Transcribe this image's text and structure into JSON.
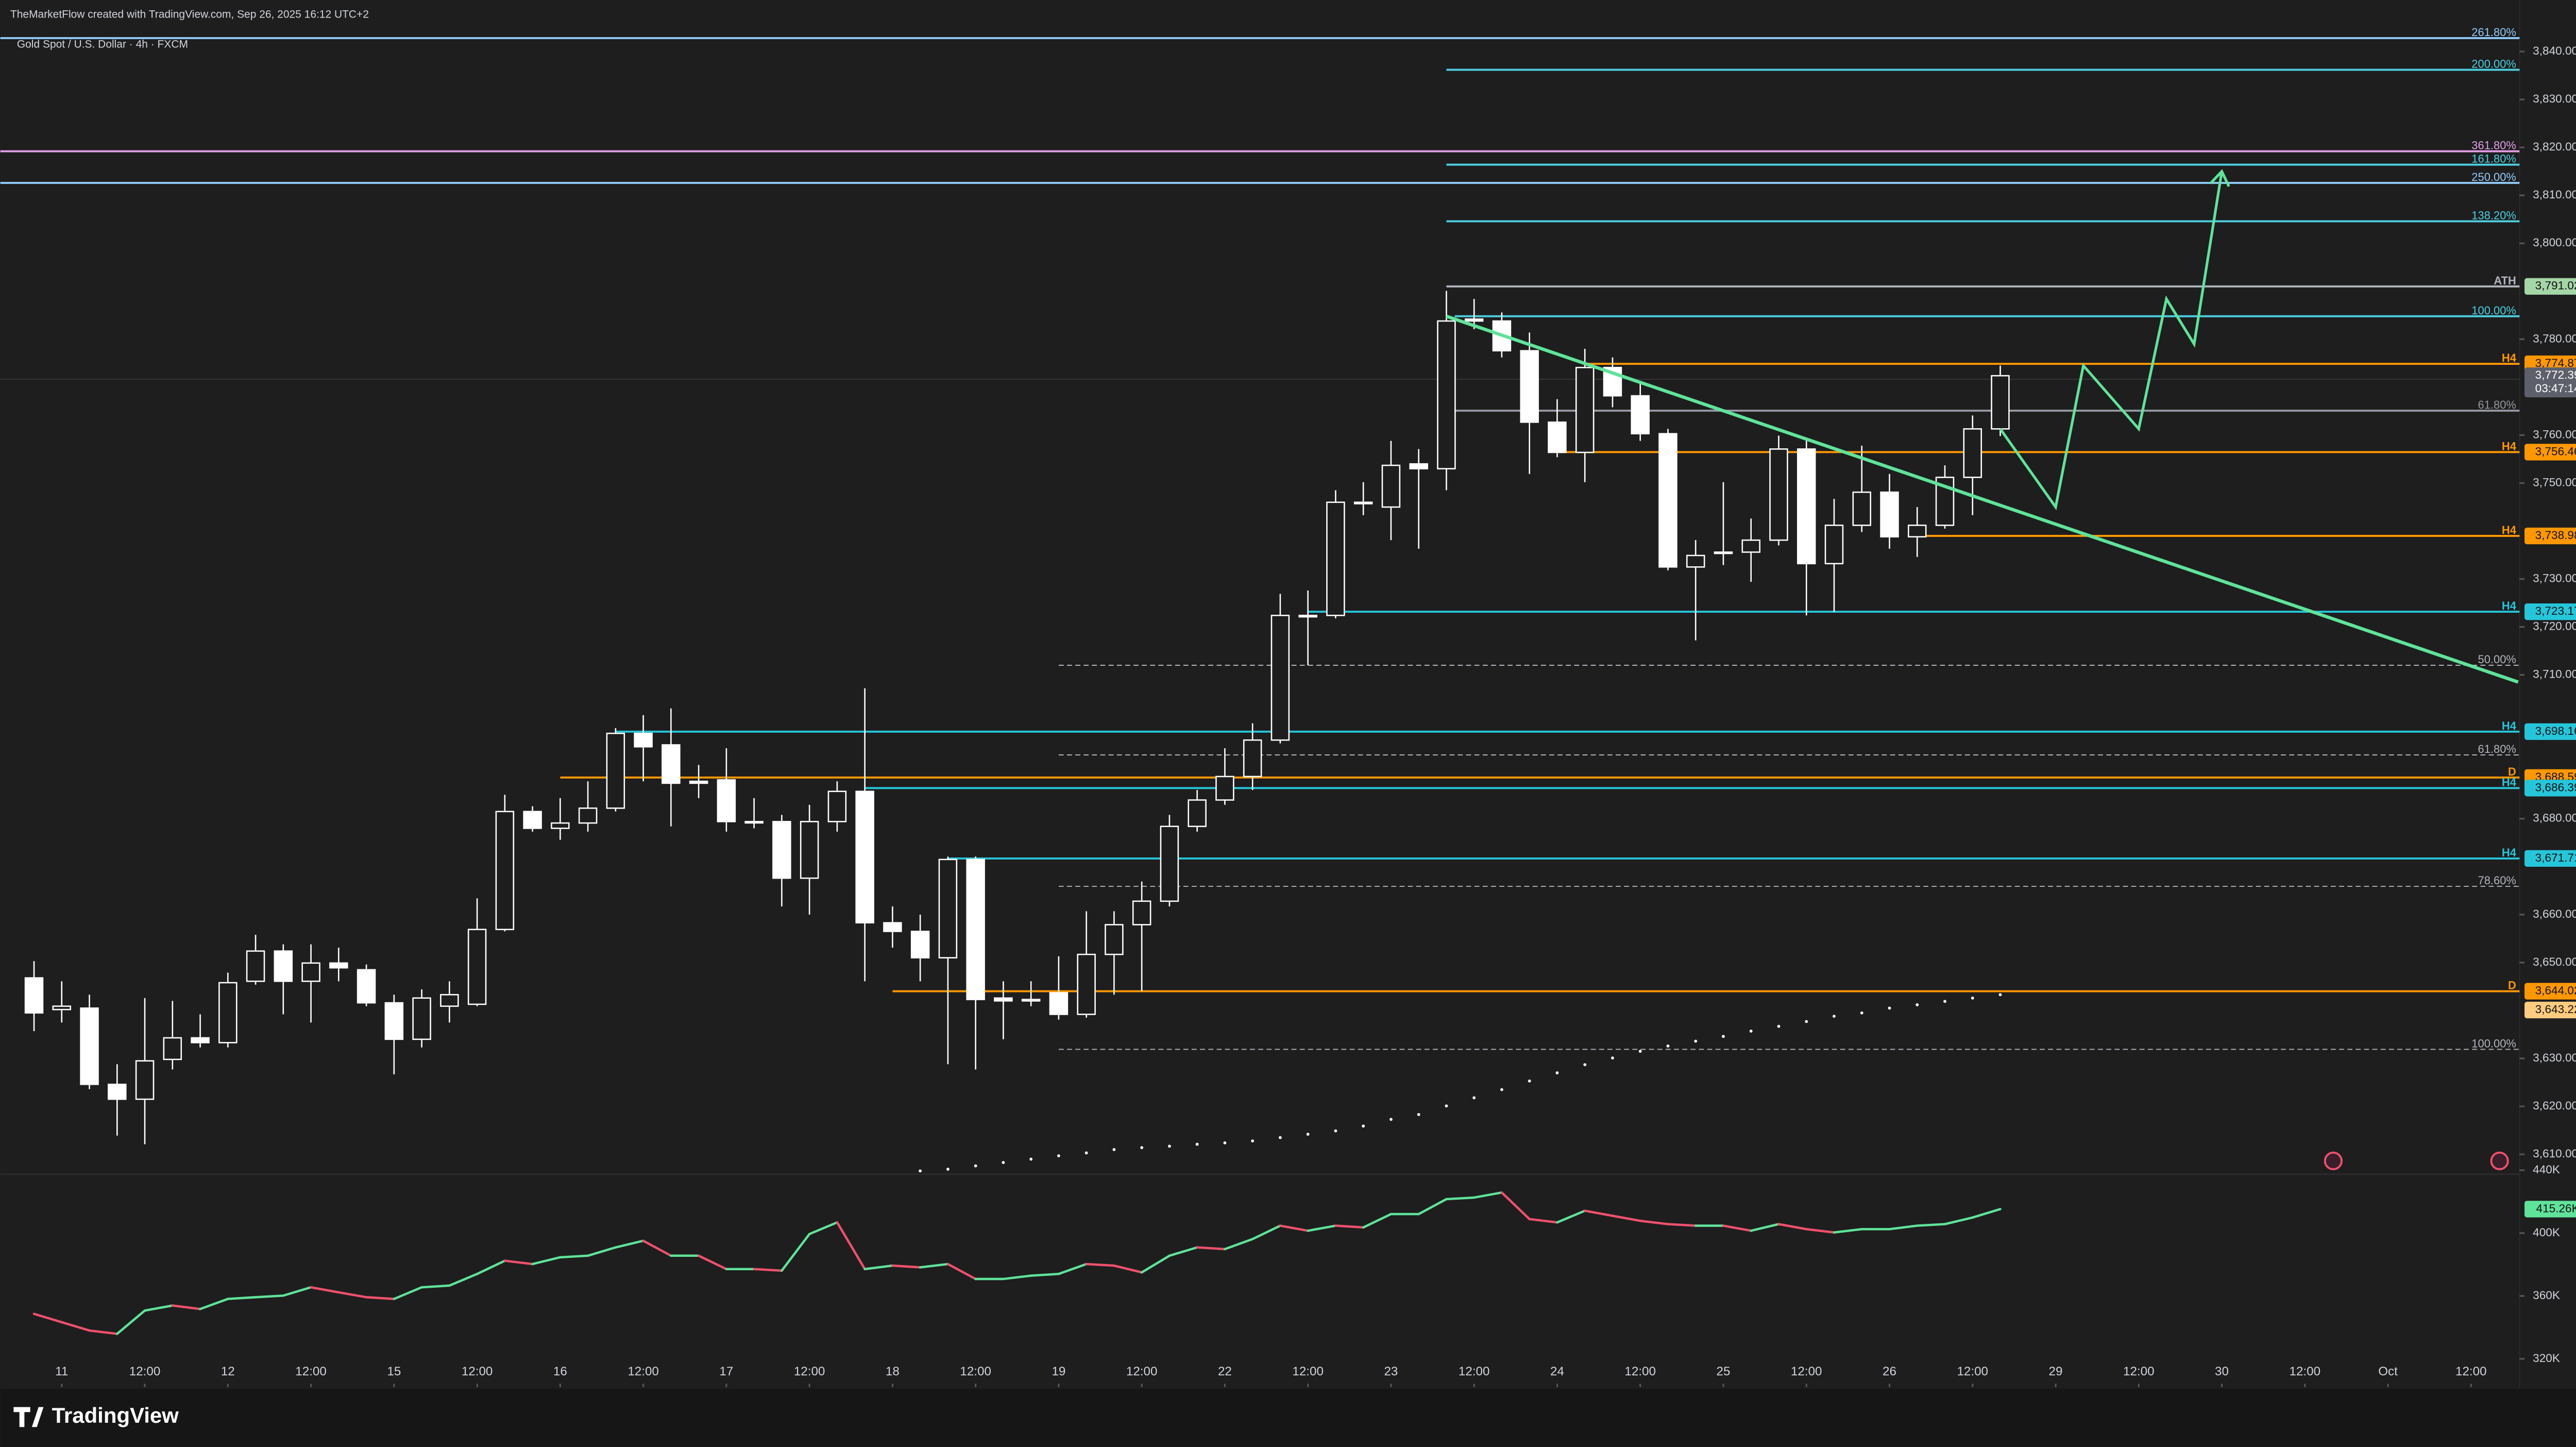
{
  "chart_data": {
    "type": "candlestick",
    "header": "TheMarketFlow created with TradingView.com, Sep 26, 2025 16:12 UTC+2",
    "title": "Gold Spot / U.S. Dollar · 4h · FXCM",
    "brand": "TradingView",
    "grid": false,
    "up_color": "#1e1e1e",
    "down_color": "#ffffff",
    "xlim": [
      -1.218,
      89.75
    ],
    "ylim": [
      3606.2,
      3850.75
    ],
    "xticks": [
      {
        "value": 1,
        "label": "11"
      },
      {
        "value": 4,
        "label": "12:00"
      },
      {
        "value": 7,
        "label": "12"
      },
      {
        "value": 10,
        "label": "12:00"
      },
      {
        "value": 13,
        "label": "15"
      },
      {
        "value": 16,
        "label": "12:00"
      },
      {
        "value": 19,
        "label": "16"
      },
      {
        "value": 22,
        "label": "12:00"
      },
      {
        "value": 25,
        "label": "17"
      },
      {
        "value": 28,
        "label": "12:00"
      },
      {
        "value": 31,
        "label": "18"
      },
      {
        "value": 34,
        "label": "12:00"
      },
      {
        "value": 37,
        "label": "19"
      },
      {
        "value": 40,
        "label": "12:00"
      },
      {
        "value": 43,
        "label": "22"
      },
      {
        "value": 46,
        "label": "12:00"
      },
      {
        "value": 49,
        "label": "23"
      },
      {
        "value": 52,
        "label": "12:00"
      },
      {
        "value": 55,
        "label": "24"
      },
      {
        "value": 58,
        "label": "12:00"
      },
      {
        "value": 61,
        "label": "25"
      },
      {
        "value": 64,
        "label": "12:00"
      },
      {
        "value": 67,
        "label": "26"
      },
      {
        "value": 70,
        "label": "12:00"
      },
      {
        "value": 73,
        "label": "29"
      },
      {
        "value": 76,
        "label": "12:00"
      },
      {
        "value": 79,
        "label": "30"
      },
      {
        "value": 82,
        "label": "12:00"
      },
      {
        "value": 85,
        "label": "Oct"
      },
      {
        "value": 88,
        "label": "12:00"
      }
    ],
    "yticks": [
      {
        "value": 3840,
        "label": "3,840.00"
      },
      {
        "value": 3830,
        "label": "3,830.00"
      },
      {
        "value": 3820,
        "label": "3,820.00"
      },
      {
        "value": 3810,
        "label": "3,810.00"
      },
      {
        "value": 3800,
        "label": "3,800.00"
      },
      {
        "value": 3780,
        "label": "3,780.00"
      },
      {
        "value": 3760,
        "label": "3,760.00"
      },
      {
        "value": 3750,
        "label": "3,750.00"
      },
      {
        "value": 3730,
        "label": "3,730.00"
      },
      {
        "value": 3720,
        "label": "3,720.00"
      },
      {
        "value": 3710,
        "label": "3,710.00"
      },
      {
        "value": 3680,
        "label": "3,680.00"
      },
      {
        "value": 3660,
        "label": "3,660.00"
      },
      {
        "value": 3650,
        "label": "3,650.00"
      },
      {
        "value": 3630,
        "label": "3,630.00"
      },
      {
        "value": 3620,
        "label": "3,620.00"
      },
      {
        "value": 3610,
        "label": "3,610.00"
      }
    ],
    "candles": {
      "open": [
        3646.8,
        3640.2,
        3640.5,
        3624.6,
        3621.5,
        3629.8,
        3634.3,
        3633.3,
        3646.1,
        3652.4,
        3646.1,
        3649.9,
        3648.5,
        3641.6,
        3634.0,
        3640.9,
        3641.3,
        3656.9,
        3681.5,
        3678.0,
        3679.1,
        3682.2,
        3697.8,
        3695.4,
        3687.8,
        3688.1,
        3679.4,
        3679.4,
        3667.6,
        3679.4,
        3685.7,
        3658.3,
        3656.5,
        3651.0,
        3671.5,
        3642.6,
        3642.0,
        3643.7,
        3639.2,
        3651.7,
        3657.9,
        3662.8,
        3678.4,
        3683.9,
        3688.8,
        3696.4,
        3722.4,
        3722.4,
        3746.0,
        3745.0,
        3754.0,
        3753.0,
        3784.2,
        3783.8,
        3777.6,
        3762.7,
        3756.4,
        3774.1,
        3768.2,
        3760.3,
        3732.5,
        3735.6,
        3735.6,
        3738.1,
        3757.1,
        3733.2,
        3741.2,
        3748.1,
        3738.8,
        3741.2,
        3751.2,
        3761.3
      ],
      "high": [
        3650.3,
        3646.1,
        3643.3,
        3628.8,
        3642.6,
        3642.0,
        3639.2,
        3647.9,
        3655.8,
        3653.8,
        3653.8,
        3653.1,
        3649.6,
        3643.3,
        3644.4,
        3646.1,
        3663.4,
        3685.0,
        3682.6,
        3684.3,
        3687.8,
        3698.9,
        3701.6,
        3703.0,
        3691.2,
        3694.7,
        3684.3,
        3680.8,
        3682.9,
        3687.8,
        3707.2,
        3661.7,
        3660.0,
        3672.1,
        3672.1,
        3646.1,
        3646.1,
        3651.3,
        3660.7,
        3660.7,
        3666.9,
        3680.8,
        3686.0,
        3694.7,
        3699.9,
        3726.9,
        3727.6,
        3748.5,
        3750.2,
        3758.8,
        3757.1,
        3790.1,
        3788.4,
        3785.6,
        3781.4,
        3767.5,
        3778.0,
        3776.2,
        3771.0,
        3761.3,
        3738.1,
        3750.2,
        3742.6,
        3759.9,
        3758.8,
        3746.7,
        3757.8,
        3751.9,
        3745.0,
        3753.7,
        3764.1,
        3774.5
      ],
      "low": [
        3635.7,
        3637.5,
        3623.6,
        3613.9,
        3612.1,
        3627.7,
        3632.3,
        3632.3,
        3645.4,
        3639.2,
        3637.5,
        3646.1,
        3640.9,
        3626.7,
        3632.3,
        3637.5,
        3640.9,
        3656.5,
        3677.3,
        3675.6,
        3677.3,
        3681.5,
        3687.8,
        3678.4,
        3684.3,
        3677.3,
        3678.0,
        3661.7,
        3660.0,
        3677.3,
        3646.1,
        3653.1,
        3646.1,
        3628.8,
        3627.7,
        3634.0,
        3640.9,
        3638.1,
        3638.5,
        3643.3,
        3644.0,
        3661.7,
        3677.3,
        3682.9,
        3686.0,
        3695.7,
        3712.0,
        3721.8,
        3743.3,
        3738.1,
        3736.3,
        3748.5,
        3782.1,
        3776.2,
        3751.9,
        3755.4,
        3750.2,
        3765.8,
        3758.8,
        3731.8,
        3717.2,
        3732.9,
        3729.4,
        3737.0,
        3722.4,
        3723.1,
        3739.8,
        3736.3,
        3734.6,
        3740.5,
        3743.3,
        3759.8
      ],
      "close": [
        3639.5,
        3640.9,
        3624.6,
        3621.5,
        3629.5,
        3634.3,
        3633.3,
        3645.8,
        3652.4,
        3646.1,
        3649.9,
        3648.9,
        3641.6,
        3634.0,
        3642.6,
        3643.3,
        3656.9,
        3681.5,
        3678.0,
        3679.1,
        3682.2,
        3697.8,
        3695.0,
        3687.4,
        3687.4,
        3679.4,
        3679.4,
        3667.6,
        3679.4,
        3685.7,
        3658.3,
        3656.5,
        3651.0,
        3671.5,
        3642.3,
        3642.0,
        3642.3,
        3639.2,
        3651.7,
        3657.9,
        3662.8,
        3678.4,
        3683.9,
        3688.8,
        3696.4,
        3722.4,
        3722.1,
        3746.0,
        3745.7,
        3753.7,
        3753.0,
        3783.8,
        3783.8,
        3777.6,
        3762.7,
        3756.4,
        3774.1,
        3768.2,
        3760.3,
        3732.5,
        3734.9,
        3735.6,
        3738.1,
        3757.1,
        3733.2,
        3741.2,
        3748.1,
        3738.8,
        3741.2,
        3751.2,
        3761.3,
        3772.39
      ]
    },
    "levels": [
      {
        "label": "261.80%",
        "value": 3842.8,
        "color": "#90caf9"
      },
      {
        "label": "200.00%",
        "value": 3836.2,
        "color": "#4dd0e1",
        "from": 51
      },
      {
        "label": "361.80%",
        "value": 3819.2,
        "color": "#e1a0e6"
      },
      {
        "label": "161.80%",
        "value": 3816.4,
        "color": "#4dd0e1",
        "from": 51
      },
      {
        "label": "250.00%",
        "value": 3812.6,
        "color": "#90caf9"
      },
      {
        "label": "138.20%",
        "value": 3804.6,
        "color": "#4dd0e1",
        "from": 51
      },
      {
        "label": "ATH",
        "value": 3791.02,
        "value_label": "3,791.02",
        "color": "#b2b5be",
        "tag_color": "#a5d6a7",
        "from": 51
      },
      {
        "label": "100.00%",
        "value": 3784.8,
        "color": "#4dd0e1",
        "from": 51.3
      },
      {
        "label": "H4",
        "value": 3774.87,
        "value_label": "3,774.87",
        "color": "#ff9800",
        "tag_color": "#ff9800",
        "from": 56
      },
      {
        "label": "61.80%",
        "value": 3765.1,
        "color": "#9598a1",
        "from": 51.3
      },
      {
        "label": "H4",
        "value": 3756.46,
        "value_label": "3,756.46",
        "color": "#ff9800",
        "tag_color": "#ff9800",
        "from": 55
      },
      {
        "label": "H4",
        "value": 3738.98,
        "value_label": "3,738.98",
        "color": "#ff9800",
        "tag_color": "#ff9800",
        "from": 68
      },
      {
        "label": "H4",
        "value": 3723.17,
        "value_label": "3,723.17",
        "color": "#26c6da",
        "tag_color": "#26c6da",
        "from": 46
      },
      {
        "label": "50.00%",
        "value": 3712.0,
        "color": "#b2b5be",
        "dashed": true,
        "from": 37
      },
      {
        "label": "H4",
        "value": 3698.16,
        "value_label": "3,698.16",
        "color": "#26c6da",
        "tag_color": "#26c6da",
        "from": 21
      },
      {
        "label": "61.80%",
        "value": 3693.3,
        "color": "#b2b5be",
        "dashed": true,
        "from": 37
      },
      {
        "label": "D",
        "value": 3688.59,
        "value_label": "3,688.59",
        "color": "#ff9800",
        "tag_color": "#ff9800",
        "from": 19
      },
      {
        "label": "H4",
        "value": 3686.39,
        "value_label": "3,686.39",
        "color": "#26c6da",
        "tag_color": "#26c6da",
        "from": 30
      },
      {
        "label": "H4",
        "value": 3671.71,
        "value_label": "3,671.71",
        "color": "#26c6da",
        "tag_color": "#26c6da",
        "from": 33
      },
      {
        "label": "78.60%",
        "value": 3665.9,
        "color": "#b2b5be",
        "dashed": true,
        "from": 37
      },
      {
        "label": "D",
        "value": 3644.02,
        "value_label": "3,644.02",
        "color": "#ff9800",
        "tag_color": "#ff9800",
        "from": 31
      },
      {
        "label": "100.00%",
        "value": 3631.9,
        "color": "#b2b5be",
        "dashed": true,
        "from": 37
      }
    ],
    "trend_line": {
      "color": "#5fe39a",
      "x": [
        51,
        89.7
      ],
      "y": [
        3784.8,
        3708.5
      ]
    },
    "projection": {
      "color": "#5fe39a",
      "x": [
        71,
        73,
        74,
        76,
        77,
        78,
        79
      ],
      "y": [
        3761.3,
        3745.0,
        3774.5,
        3761.3,
        3788.4,
        3779.0,
        3815.0
      ]
    },
    "dots": {
      "color": "#ffffff",
      "x": [
        32,
        33,
        34,
        35,
        36,
        37,
        38,
        39,
        40,
        41,
        42,
        43,
        44,
        45,
        46,
        47,
        48,
        49,
        50,
        51,
        52,
        53,
        54,
        55,
        56,
        57,
        58,
        59,
        60,
        61,
        62,
        63,
        64,
        65,
        66,
        67,
        68,
        69,
        70,
        71
      ],
      "values": [
        3606.2,
        3606.9,
        3607.6,
        3608.3,
        3609.0,
        3609.7,
        3610.3,
        3611.0,
        3611.4,
        3611.7,
        3612.1,
        3612.4,
        3612.8,
        3613.5,
        3614.2,
        3614.9,
        3615.9,
        3617.3,
        3618.3,
        3620.1,
        3621.8,
        3623.5,
        3625.3,
        3627.0,
        3628.7,
        3630.1,
        3631.5,
        3632.6,
        3633.6,
        3634.6,
        3635.7,
        3636.7,
        3637.7,
        3638.8,
        3639.5,
        3640.5,
        3641.2,
        3641.9,
        3642.6,
        3643.3
      ]
    },
    "last_price": {
      "value": 3772.39,
      "label": "3,772.39",
      "countdown": "03:47:14",
      "color": "#5d606b"
    },
    "price_tags": [
      {
        "value": 3643.22,
        "label": "3,643.22",
        "color": "#ffcc80"
      }
    ],
    "indicator": {
      "up_color": "#5fe39a",
      "down_color": "#f0506e",
      "ylim": [
        304.1,
        443.8
      ],
      "yticks": [
        {
          "value": 440,
          "label": "440K"
        },
        {
          "value": 400,
          "label": "400K"
        },
        {
          "value": 360,
          "label": "360K"
        },
        {
          "value": 320,
          "label": "320K"
        }
      ],
      "values": [
        348.6,
        343.3,
        338.0,
        335.9,
        350.7,
        353.9,
        351.7,
        358.1,
        359.2,
        360.2,
        365.5,
        362.3,
        359.2,
        358.1,
        365.5,
        366.6,
        374.0,
        382.4,
        380.3,
        384.6,
        385.6,
        390.9,
        395.1,
        385.6,
        385.6,
        377.1,
        377.1,
        376.1,
        399.4,
        406.8,
        377.1,
        379.3,
        378.2,
        380.3,
        370.8,
        370.8,
        372.9,
        374.0,
        380.3,
        379.3,
        375.0,
        385.6,
        390.9,
        389.8,
        396.2,
        404.7,
        401.5,
        404.7,
        403.6,
        412.1,
        412.1,
        421.6,
        422.6,
        425.8,
        408.9,
        406.8,
        414.2,
        411.0,
        407.8,
        405.7,
        404.7,
        404.7,
        401.5,
        405.7,
        402.5,
        400.4,
        402.5,
        402.5,
        404.7,
        405.7,
        409.9,
        415.26
      ],
      "tag": {
        "value": 415.26,
        "label": "415.26K"
      }
    }
  }
}
